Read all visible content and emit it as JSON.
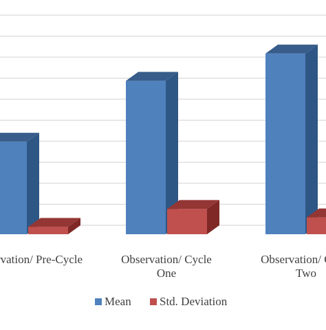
{
  "chart_data": {
    "type": "bar",
    "style": "3d-clustered-column",
    "categories": [
      [
        "Observation/ Pre-Cycle"
      ],
      [
        "Observation/ Cycle",
        "One"
      ],
      [
        "Observation/ Cycle",
        "Two"
      ]
    ],
    "series": [
      {
        "name": "Mean",
        "values": [
          4.4,
          7.3,
          8.6
        ]
      },
      {
        "name": "Std. Deviation",
        "values": [
          0.35,
          1.2,
          0.8
        ]
      }
    ],
    "ylim": [
      0,
      11
    ],
    "grid": true,
    "legend_position": "bottom",
    "colors": {
      "Mean": {
        "front": "#4f81bd",
        "side": "#2f5785",
        "top": "#385d8a"
      },
      "Std. Deviation": {
        "front": "#c0504d",
        "side": "#7f2826",
        "top": "#943634"
      },
      "grid": "#d9d9d9",
      "text": "#404040"
    }
  }
}
